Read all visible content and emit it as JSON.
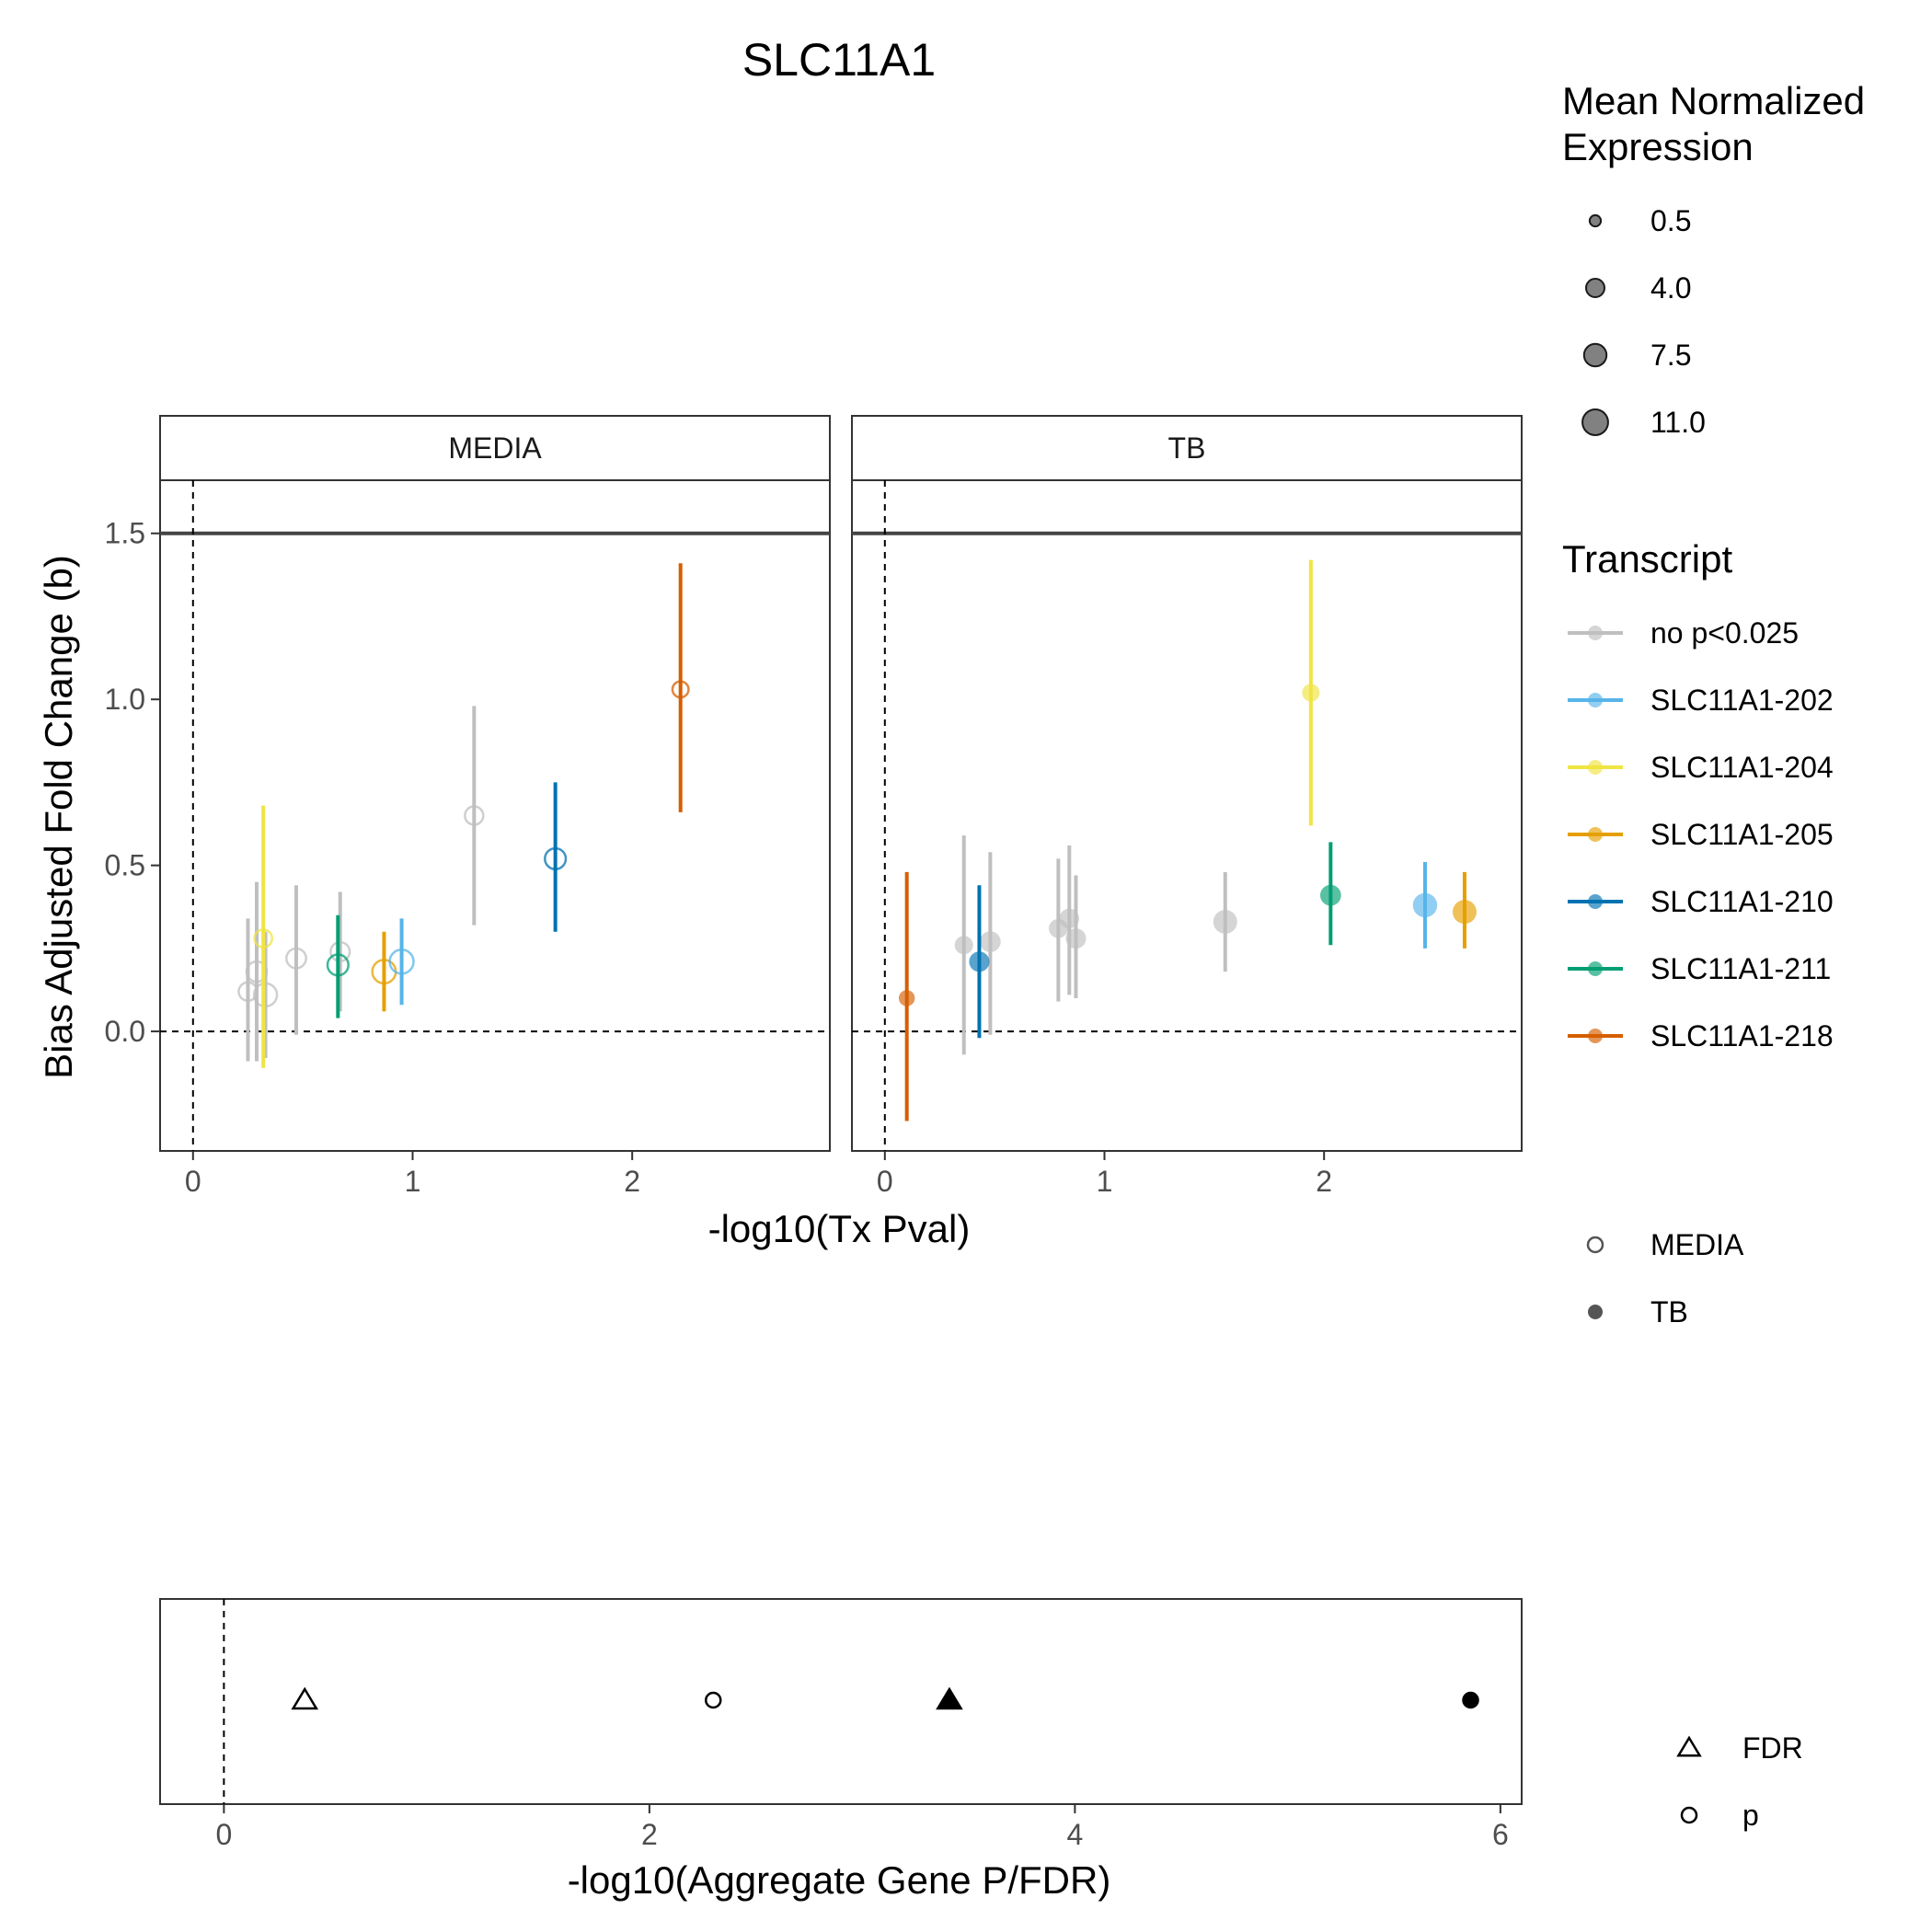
{
  "chart_data": {
    "type": "scatter",
    "title": "SLC11A1",
    "main_plot": {
      "xlabel": "-log10(Tx Pval)",
      "ylabel": "Bias Adjusted Fold Change (b)",
      "xlim": [
        -0.15,
        2.9
      ],
      "ylim": [
        -0.36,
        1.66
      ],
      "x_ticks": [
        0,
        1,
        2
      ],
      "x_tick_labels": [
        "0",
        "1",
        "2"
      ],
      "y_ticks": [
        0.0,
        0.5,
        1.0,
        1.5
      ],
      "y_tick_labels": [
        "0.0",
        "0.5",
        "1.0",
        "1.5"
      ],
      "hline_solid": 1.5,
      "hline_dashed": 0.0,
      "vline_dashed": 0.0,
      "panels": [
        {
          "label": "MEDIA",
          "points": [
            {
              "transcript": "no p<0.025",
              "x": 0.25,
              "y": 0.12,
              "lo": -0.09,
              "hi": 0.34,
              "size": 4.0
            },
            {
              "transcript": "no p<0.025",
              "x": 0.29,
              "y": 0.18,
              "lo": -0.09,
              "hi": 0.45,
              "size": 5.5
            },
            {
              "transcript": "no p<0.025",
              "x": 0.33,
              "y": 0.11,
              "lo": -0.08,
              "hi": 0.3,
              "size": 8.0
            },
            {
              "transcript": "no p<0.025",
              "x": 0.47,
              "y": 0.22,
              "lo": -0.01,
              "hi": 0.44,
              "size": 5.0
            },
            {
              "transcript": "no p<0.025",
              "x": 0.67,
              "y": 0.24,
              "lo": 0.06,
              "hi": 0.42,
              "size": 4.5
            },
            {
              "transcript": "no p<0.025",
              "x": 1.28,
              "y": 0.65,
              "lo": 0.32,
              "hi": 0.98,
              "size": 4.0
            },
            {
              "transcript": "SLC11A1-204",
              "x": 0.32,
              "y": 0.28,
              "lo": -0.11,
              "hi": 0.68,
              "size": 3.5
            },
            {
              "transcript": "SLC11A1-211",
              "x": 0.66,
              "y": 0.2,
              "lo": 0.04,
              "hi": 0.35,
              "size": 6.0
            },
            {
              "transcript": "SLC11A1-205",
              "x": 0.87,
              "y": 0.18,
              "lo": 0.06,
              "hi": 0.3,
              "size": 8.5
            },
            {
              "transcript": "SLC11A1-202",
              "x": 0.95,
              "y": 0.21,
              "lo": 0.08,
              "hi": 0.34,
              "size": 9.0
            },
            {
              "transcript": "SLC11A1-210",
              "x": 1.65,
              "y": 0.52,
              "lo": 0.3,
              "hi": 0.75,
              "size": 6.0
            },
            {
              "transcript": "SLC11A1-218",
              "x": 2.22,
              "y": 1.03,
              "lo": 0.66,
              "hi": 1.41,
              "size": 2.5
            }
          ]
        },
        {
          "label": "TB",
          "points": [
            {
              "transcript": "no p<0.025",
              "x": 0.36,
              "y": 0.26,
              "lo": -0.07,
              "hi": 0.59,
              "size": 4.0
            },
            {
              "transcript": "no p<0.025",
              "x": 0.48,
              "y": 0.27,
              "lo": -0.01,
              "hi": 0.54,
              "size": 6.0
            },
            {
              "transcript": "no p<0.025",
              "x": 0.79,
              "y": 0.31,
              "lo": 0.09,
              "hi": 0.52,
              "size": 4.5
            },
            {
              "transcript": "no p<0.025",
              "x": 0.84,
              "y": 0.34,
              "lo": 0.11,
              "hi": 0.56,
              "size": 5.0
            },
            {
              "transcript": "no p<0.025",
              "x": 0.87,
              "y": 0.28,
              "lo": 0.1,
              "hi": 0.47,
              "size": 5.5
            },
            {
              "transcript": "no p<0.025",
              "x": 1.55,
              "y": 0.33,
              "lo": 0.18,
              "hi": 0.48,
              "size": 9.0
            },
            {
              "transcript": "SLC11A1-218",
              "x": 0.1,
              "y": 0.1,
              "lo": -0.27,
              "hi": 0.48,
              "size": 2.5
            },
            {
              "transcript": "SLC11A1-210",
              "x": 0.43,
              "y": 0.21,
              "lo": -0.02,
              "hi": 0.44,
              "size": 5.5
            },
            {
              "transcript": "SLC11A1-204",
              "x": 1.94,
              "y": 1.02,
              "lo": 0.62,
              "hi": 1.42,
              "size": 3.5
            },
            {
              "transcript": "SLC11A1-211",
              "x": 2.03,
              "y": 0.41,
              "lo": 0.26,
              "hi": 0.57,
              "size": 6.0
            },
            {
              "transcript": "SLC11A1-202",
              "x": 2.46,
              "y": 0.38,
              "lo": 0.25,
              "hi": 0.51,
              "size": 9.5
            },
            {
              "transcript": "SLC11A1-205",
              "x": 2.64,
              "y": 0.36,
              "lo": 0.25,
              "hi": 0.48,
              "size": 9.0
            }
          ]
        }
      ]
    },
    "bottom_plot": {
      "xlabel": "-log10(Aggregate Gene P/FDR)",
      "xlim": [
        -0.3,
        6.1
      ],
      "x_ticks": [
        0,
        2,
        4,
        6
      ],
      "x_tick_labels": [
        "0",
        "2",
        "4",
        "6"
      ],
      "vline_dashed": 0,
      "points": [
        {
          "x": 0.38,
          "shape": "FDR",
          "condition": "MEDIA"
        },
        {
          "x": 2.3,
          "shape": "p",
          "condition": "MEDIA"
        },
        {
          "x": 3.41,
          "shape": "FDR",
          "condition": "TB"
        },
        {
          "x": 5.86,
          "shape": "p",
          "condition": "TB"
        }
      ]
    },
    "legends": {
      "size": {
        "title_lines": [
          "Mean Normalized",
          "Expression"
        ],
        "entries": [
          {
            "label": "0.5",
            "value": 0.5
          },
          {
            "label": "4.0",
            "value": 4.0
          },
          {
            "label": "7.5",
            "value": 7.5
          },
          {
            "label": "11.0",
            "value": 11.0
          }
        ]
      },
      "transcript": {
        "title": "Transcript",
        "entries": [
          {
            "label": "no p<0.025",
            "color": "#bfbfbf"
          },
          {
            "label": "SLC11A1-202",
            "color": "#56b4e9"
          },
          {
            "label": "SLC11A1-204",
            "color": "#f0e442"
          },
          {
            "label": "SLC11A1-205",
            "color": "#e69f00"
          },
          {
            "label": "SLC11A1-210",
            "color": "#0072b2"
          },
          {
            "label": "SLC11A1-211",
            "color": "#009e73"
          },
          {
            "label": "SLC11A1-218",
            "color": "#d55e00"
          }
        ]
      },
      "condition": {
        "entries": [
          {
            "label": "MEDIA",
            "fill": "open"
          },
          {
            "label": "TB",
            "fill": "filled"
          }
        ]
      },
      "stat": {
        "entries": [
          {
            "label": "FDR",
            "shape": "triangle"
          },
          {
            "label": "p",
            "shape": "circle"
          }
        ]
      }
    }
  }
}
